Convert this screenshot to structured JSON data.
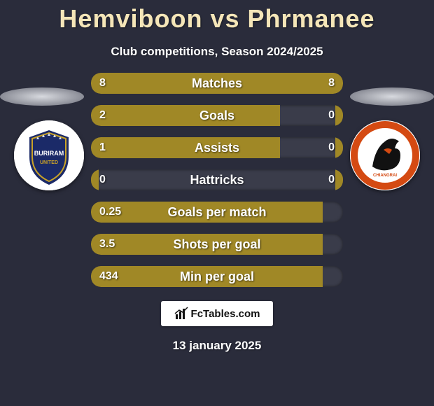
{
  "title": "Hemviboon vs Phrmanee",
  "subtitle": "Club competitions, Season 2024/2025",
  "date": "13 january 2025",
  "footer_brand": "FcTables.com",
  "colors": {
    "background": "#2a2c3b",
    "title": "#f5e6b8",
    "text": "#ffffff",
    "bar_fill": "#a08826",
    "bar_track": "rgba(255,255,255,0.08)"
  },
  "crest_left": {
    "name": "buriram-united-crest",
    "bg": "#ffffff",
    "inner_bg": "#1b2a68",
    "accent": "#c9a227"
  },
  "crest_right": {
    "name": "chiangrai-united-crest",
    "bg": "#ffffff",
    "ring": "#d44a12",
    "inner": "#111111"
  },
  "stats": [
    {
      "label": "Matches",
      "left_val": "8",
      "right_val": "8",
      "left_pct": 50,
      "right_pct": 50
    },
    {
      "label": "Goals",
      "left_val": "2",
      "right_val": "0",
      "left_pct": 75,
      "right_pct": 3
    },
    {
      "label": "Assists",
      "left_val": "1",
      "right_val": "0",
      "left_pct": 75,
      "right_pct": 3
    },
    {
      "label": "Hattricks",
      "left_val": "0",
      "right_val": "0",
      "left_pct": 3,
      "right_pct": 3
    },
    {
      "label": "Goals per match",
      "left_val": "0.25",
      "right_val": "",
      "left_pct": 92,
      "right_pct": 0
    },
    {
      "label": "Shots per goal",
      "left_val": "3.5",
      "right_val": "",
      "left_pct": 92,
      "right_pct": 0
    },
    {
      "label": "Min per goal",
      "left_val": "434",
      "right_val": "",
      "left_pct": 92,
      "right_pct": 0
    }
  ]
}
